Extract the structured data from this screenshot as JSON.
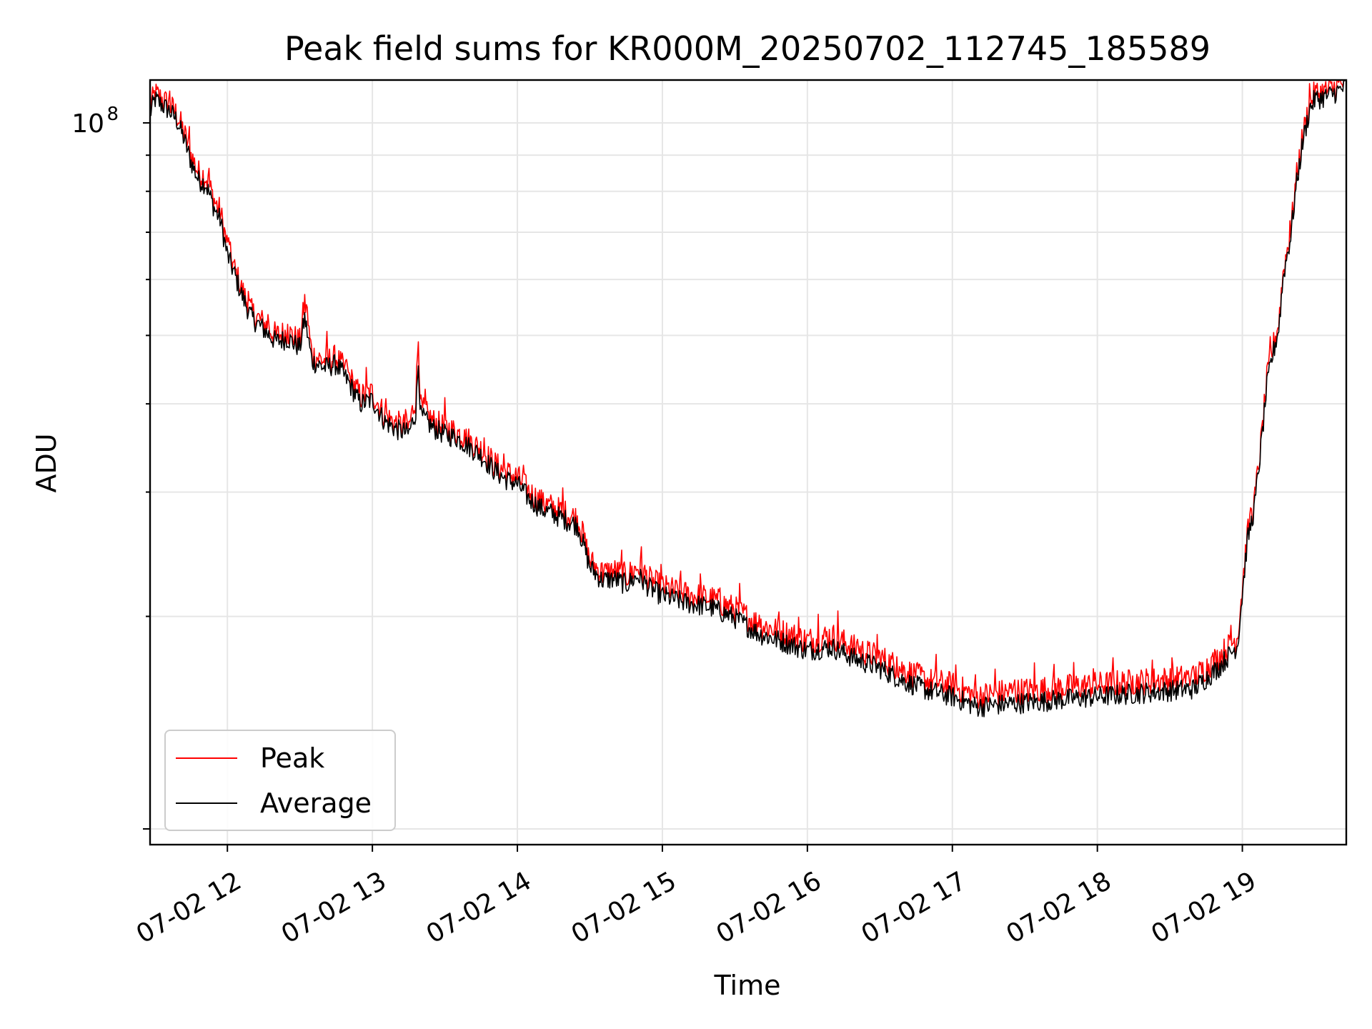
{
  "chart_data": {
    "type": "line",
    "title": "Peak field sums for KR000M_20250702_112745_185589",
    "xlabel": "Time",
    "ylabel": "ADU",
    "x_tick_labels": [
      "07-02 12",
      "07-02 13",
      "07-02 14",
      "07-02 15",
      "07-02 16",
      "07-02 17",
      "07-02 18",
      "07-02 19"
    ],
    "y_tick_labels": [
      {
        "base": "10",
        "exp": "8"
      }
    ],
    "xlim": [
      "2025-07-02 11:28",
      "2025-07-02 19:43"
    ],
    "ylim": [
      9500000,
      115000000
    ],
    "yscale": "log",
    "grid": true,
    "legend": {
      "location": "lower left",
      "entries": [
        {
          "label": "Peak",
          "color": "#ff0000"
        },
        {
          "label": "Average",
          "color": "#000000"
        }
      ]
    },
    "series": [
      {
        "name": "Peak",
        "color": "#ff0000",
        "x": [
          "11:28",
          "11:30",
          "11:33",
          "11:36",
          "11:39",
          "11:42",
          "11:45",
          "11:48",
          "11:51",
          "11:55",
          "11:57",
          "12:00",
          "12:03",
          "12:06",
          "12:10",
          "12:15",
          "12:20",
          "12:25",
          "12:30",
          "12:32",
          "12:35",
          "12:40",
          "12:45",
          "12:50",
          "12:55",
          "13:00",
          "13:05",
          "13:10",
          "13:15",
          "13:18",
          "13:19",
          "13:20",
          "13:25",
          "13:30",
          "13:35",
          "13:40",
          "13:45",
          "13:50",
          "13:55",
          "14:00",
          "14:05",
          "14:10",
          "14:15",
          "14:20",
          "14:25",
          "14:30",
          "14:35",
          "14:40",
          "14:45",
          "14:50",
          "14:55",
          "15:00",
          "15:10",
          "15:20",
          "15:30",
          "15:40",
          "15:50",
          "16:00",
          "16:10",
          "16:20",
          "16:30",
          "16:40",
          "16:50",
          "17:00",
          "17:10",
          "17:20",
          "17:30",
          "17:40",
          "17:50",
          "18:00",
          "18:10",
          "18:20",
          "18:30",
          "18:40",
          "18:50",
          "18:58",
          "19:02",
          "19:05",
          "19:08",
          "19:10",
          "19:12",
          "19:15",
          "19:17",
          "19:20",
          "19:22",
          "19:25",
          "19:28",
          "19:30",
          "19:35",
          "19:40",
          "19:43"
        ],
        "y": [
          105000000,
          110000000,
          108000000,
          106000000,
          103000000,
          97000000,
          90000000,
          85000000,
          84000000,
          77000000,
          75000000,
          67000000,
          62000000,
          58000000,
          54000000,
          52000000,
          50000000,
          50500000,
          49000000,
          56000000,
          47000000,
          46000000,
          46500000,
          44000000,
          41000000,
          41500000,
          38500000,
          37500000,
          37000000,
          41000000,
          50000000,
          39500000,
          37800000,
          37000000,
          36500000,
          35500000,
          34500000,
          33000000,
          32000000,
          31500000,
          30000000,
          29000000,
          28500000,
          28000000,
          27500000,
          24000000,
          23000000,
          23200000,
          22800000,
          23500000,
          22500000,
          22000000,
          21500000,
          21200000,
          20500000,
          19500000,
          19000000,
          18500000,
          18800000,
          18000000,
          17500000,
          16800000,
          16200000,
          16000000,
          15400000,
          15600000,
          15700000,
          15800000,
          15900000,
          16000000,
          16100000,
          16200000,
          16300000,
          16400000,
          17500000,
          18700000,
          26000000,
          29000000,
          36000000,
          43000000,
          47000000,
          52000000,
          62000000,
          70000000,
          82000000,
          96000000,
          107000000,
          110000000,
          111000000,
          113000000,
          115000000
        ]
      },
      {
        "name": "Average",
        "color": "#000000",
        "x": [
          "11:28",
          "11:30",
          "11:33",
          "11:36",
          "11:39",
          "11:42",
          "11:45",
          "11:48",
          "11:51",
          "11:55",
          "11:57",
          "12:00",
          "12:03",
          "12:06",
          "12:10",
          "12:15",
          "12:20",
          "12:25",
          "12:30",
          "12:32",
          "12:35",
          "12:40",
          "12:45",
          "12:50",
          "12:55",
          "13:00",
          "13:05",
          "13:10",
          "13:15",
          "13:18",
          "13:19",
          "13:20",
          "13:25",
          "13:30",
          "13:35",
          "13:40",
          "13:45",
          "13:50",
          "13:55",
          "14:00",
          "14:05",
          "14:10",
          "14:15",
          "14:20",
          "14:25",
          "14:30",
          "14:35",
          "14:40",
          "14:45",
          "14:50",
          "14:55",
          "15:00",
          "15:10",
          "15:20",
          "15:30",
          "15:40",
          "15:50",
          "16:00",
          "16:10",
          "16:20",
          "16:30",
          "16:40",
          "16:50",
          "17:00",
          "17:10",
          "17:20",
          "17:30",
          "17:40",
          "17:50",
          "18:00",
          "18:10",
          "18:20",
          "18:30",
          "18:40",
          "18:50",
          "18:58",
          "19:02",
          "19:05",
          "19:08",
          "19:10",
          "19:12",
          "19:15",
          "19:17",
          "19:20",
          "19:22",
          "19:25",
          "19:28",
          "19:30",
          "19:35",
          "19:40",
          "19:43"
        ],
        "y": [
          103000000,
          108000000,
          106000000,
          104000000,
          101000000,
          95000000,
          88000000,
          83000000,
          82000000,
          75000000,
          73000000,
          65000000,
          61000000,
          57000000,
          53000000,
          51000000,
          49000000,
          49500000,
          48000000,
          53000000,
          46000000,
          45000000,
          45500000,
          43000000,
          40000000,
          40500000,
          37800000,
          36800000,
          36300000,
          39000000,
          46000000,
          38500000,
          37000000,
          36200000,
          35800000,
          34800000,
          33800000,
          32300000,
          31300000,
          30800000,
          29300000,
          28400000,
          27900000,
          27400000,
          26900000,
          23500000,
          22500000,
          22600000,
          22200000,
          22800000,
          21900000,
          21400000,
          20900000,
          20600000,
          19900000,
          18900000,
          18400000,
          17900000,
          18100000,
          17400000,
          16900000,
          16200000,
          15700000,
          15400000,
          14900000,
          15000000,
          15100000,
          15200000,
          15300000,
          15400000,
          15500000,
          15600000,
          15700000,
          15800000,
          16900000,
          18200000,
          25500000,
          28500000,
          35500000,
          42000000,
          46000000,
          51000000,
          61000000,
          69000000,
          80000000,
          94000000,
          105000000,
          108000000,
          109000000,
          111000000,
          113000000
        ]
      }
    ]
  }
}
